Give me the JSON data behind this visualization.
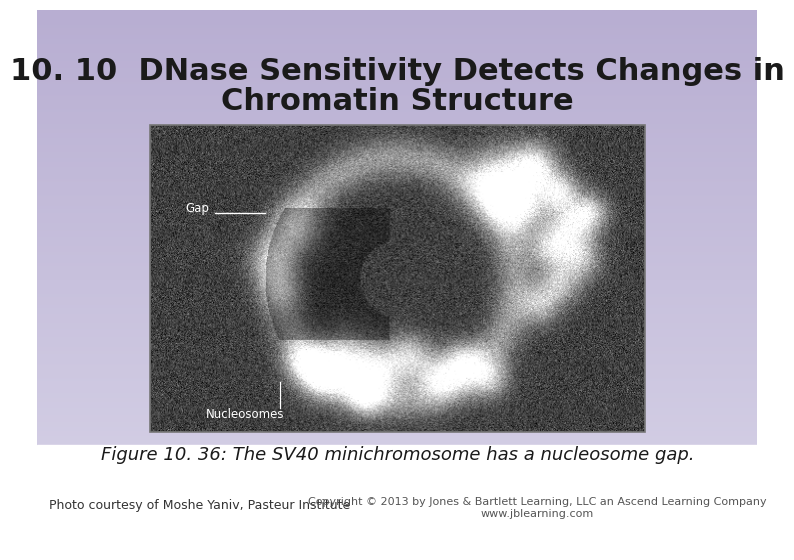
{
  "title_line1": "10. 10  DNase Sensitivity Detects Changes in",
  "title_line2": "Chromatin Structure",
  "title_fontsize": 22,
  "title_color": "#1a1a1a",
  "figure_caption": "Figure 10. 36: The SV40 minichromosome has a nucleosome gap.",
  "caption_fontsize": 13,
  "photo_credit": "Photo courtesy of Moshe Yaniv, Pasteur Institute",
  "photo_credit_fontsize": 9,
  "copyright_text": "Copyright © 2013 by Jones & Bartlett Learning, LLC an Ascend Learning Company\nwww.jblearning.com",
  "copyright_fontsize": 8
}
